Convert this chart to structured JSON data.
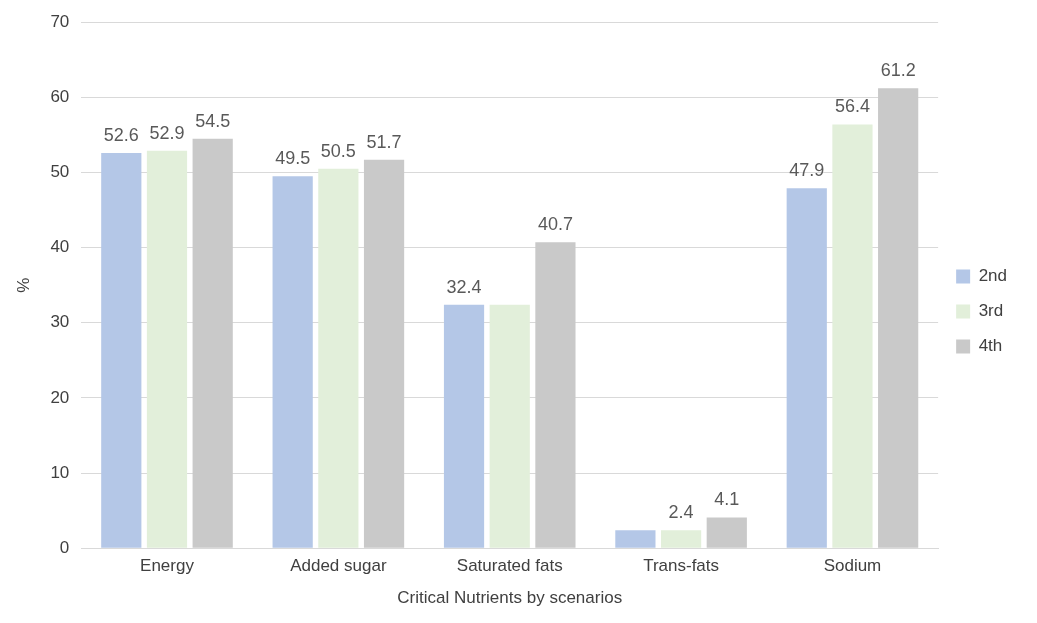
{
  "chart_data": {
    "type": "bar",
    "xlabel": "Critical Nutrients by scenarios",
    "ylabel": "%",
    "categories": [
      "Energy",
      "Added sugar",
      "Saturated fats",
      "Trans-fats",
      "Sodium"
    ],
    "series": [
      {
        "name": "2nd",
        "color": "#b4c7e7",
        "values": [
          52.6,
          49.5,
          32.4,
          2.4,
          47.9
        ],
        "value_labels": [
          "52.6",
          "49.5",
          "32.4",
          null,
          "47.9"
        ]
      },
      {
        "name": "3rd",
        "color": "#e2efda",
        "values": [
          52.9,
          50.5,
          32.4,
          2.4,
          56.4
        ],
        "value_labels": [
          "52.9",
          "50.5",
          null,
          "2.4",
          "56.4"
        ]
      },
      {
        "name": "4th",
        "color": "#c9c9c9",
        "values": [
          54.5,
          51.7,
          40.7,
          4.1,
          61.2
        ],
        "value_labels": [
          "54.5",
          "51.7",
          "40.7",
          "4.1",
          "61.2"
        ]
      }
    ],
    "ylim": [
      0,
      70
    ],
    "yticks": [
      0,
      10,
      20,
      30,
      40,
      50,
      60,
      70
    ],
    "grid": "y",
    "legend": "right"
  }
}
